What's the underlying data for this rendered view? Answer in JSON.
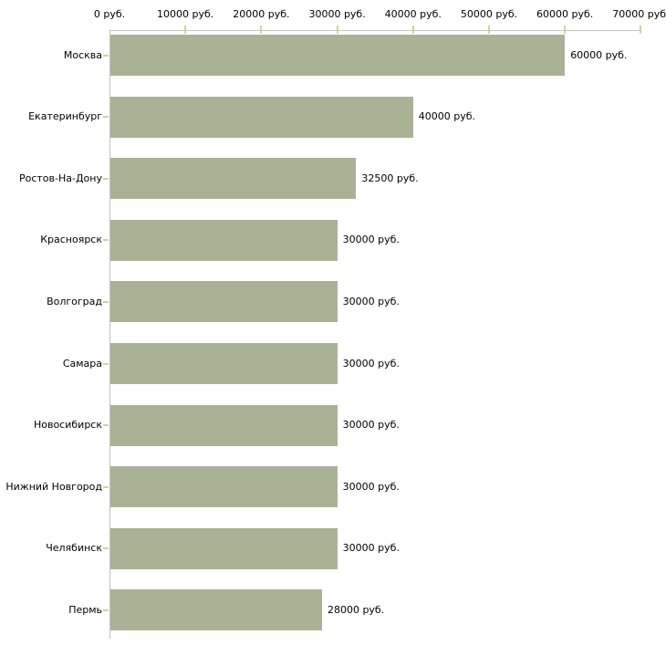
{
  "chart_data": {
    "type": "bar",
    "orientation": "horizontal",
    "title": "",
    "xlabel": "",
    "ylabel": "",
    "grid": false,
    "legend": false,
    "categories": [
      "Москва",
      "Екатеринбург",
      "Ростов-На-Дону",
      "Красноярск",
      "Волгоград",
      "Самара",
      "Новосибирск",
      "Нижний Новгород",
      "Челябинск",
      "Пермь"
    ],
    "values": [
      60000,
      40000,
      32500,
      30000,
      30000,
      30000,
      30000,
      30000,
      30000,
      28000
    ],
    "value_labels": [
      "60000 руб.",
      "40000 руб.",
      "32500 руб.",
      "30000 руб.",
      "30000 руб.",
      "30000 руб.",
      "30000 руб.",
      "30000 руб.",
      "30000 руб.",
      "28000 руб."
    ],
    "x_axis": {
      "min": 0,
      "max": 70000,
      "unit": "руб.",
      "tick_values": [
        0,
        10000,
        20000,
        30000,
        40000,
        50000,
        60000,
        70000
      ],
      "tick_labels": [
        "0 руб.",
        "10000 руб.",
        "20000 руб.",
        "30000 руб.",
        "40000 руб.",
        "50000 руб.",
        "60000 руб.",
        "70000 руб."
      ]
    }
  },
  "colors": {
    "bar": "#aab296",
    "axis_line": "#c3c3c3",
    "tick_mark": "#d6d0a0",
    "text": "#000000",
    "background": "#ffffff"
  }
}
